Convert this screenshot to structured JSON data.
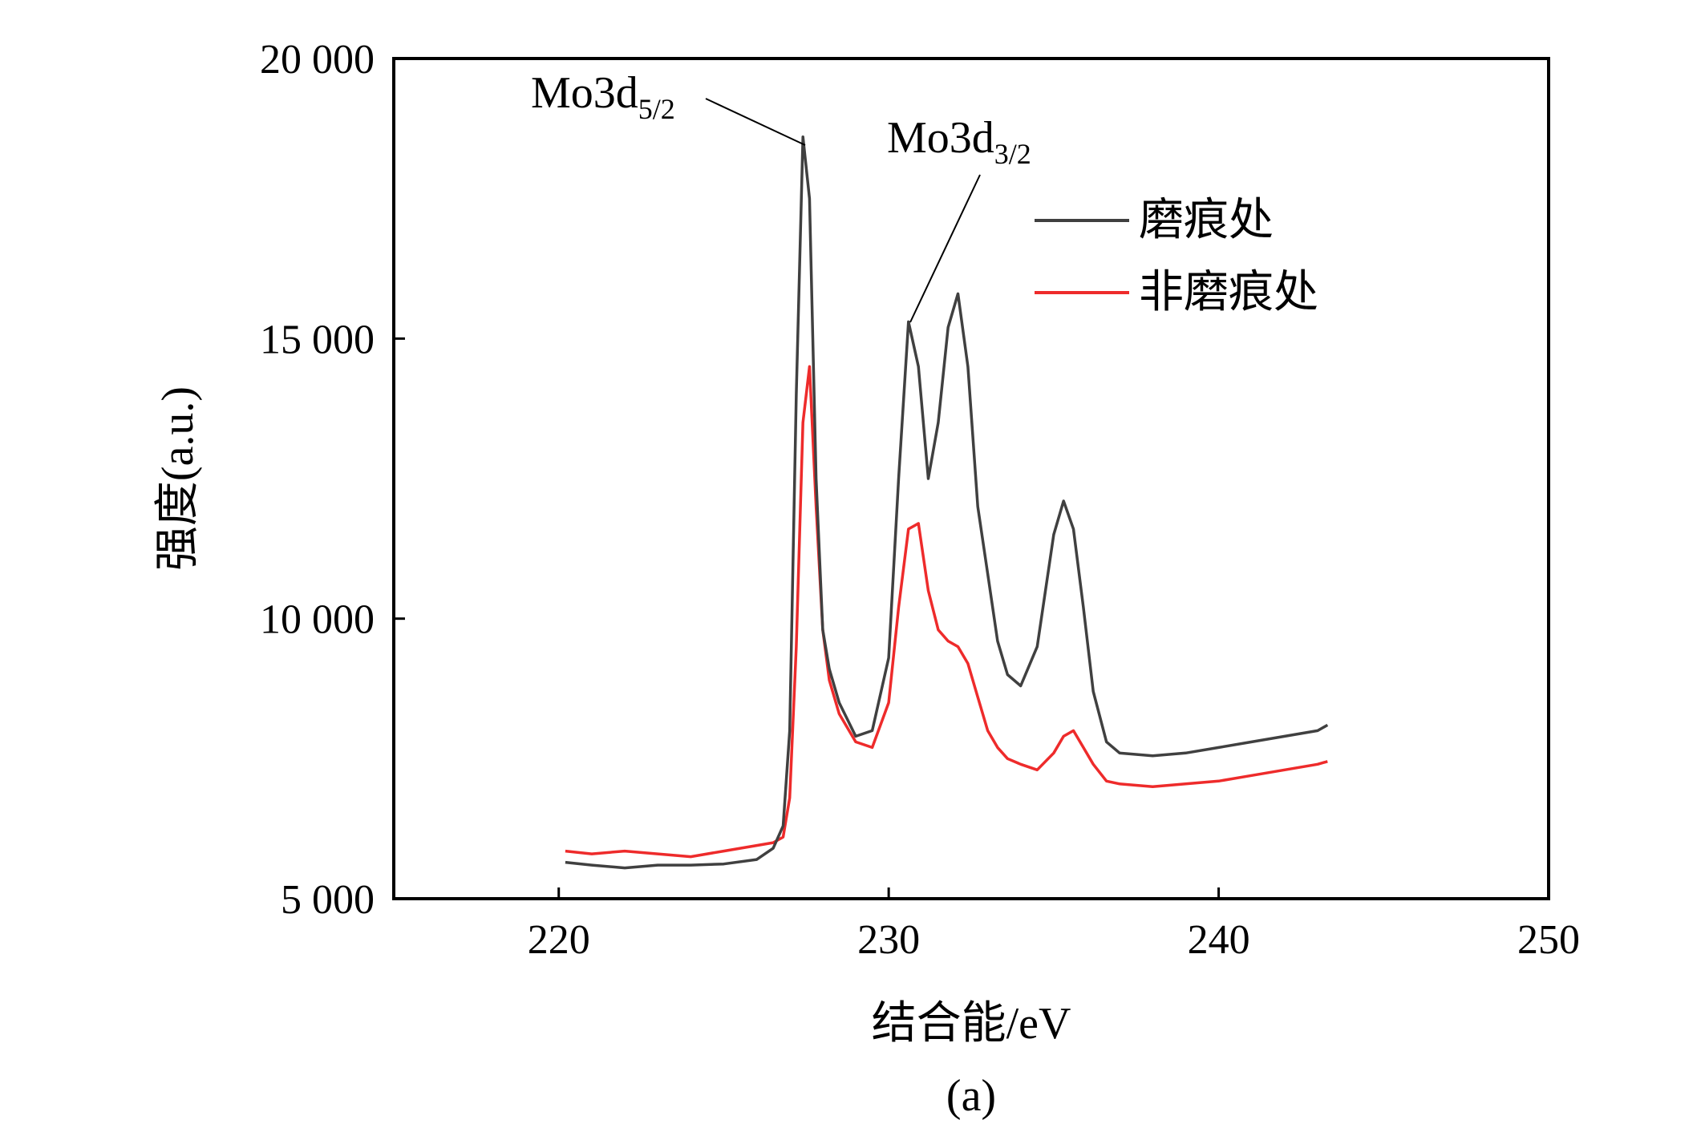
{
  "chart_data": {
    "type": "line",
    "xlabel": "结合能/eV",
    "ylabel": "强度(a.u.)",
    "caption": "(a)",
    "xlim": [
      215,
      250
    ],
    "ylim": [
      5000,
      20000
    ],
    "xticks": [
      220,
      230,
      240,
      250
    ],
    "yticks": [
      5000,
      10000,
      15000,
      20000
    ],
    "xtick_labels": [
      "220",
      "230",
      "240",
      "250"
    ],
    "ytick_labels": [
      "5 000",
      "10 000",
      "15 000",
      "20 000"
    ],
    "grid": false,
    "legend_position": "top-right",
    "annotations": [
      {
        "main": "Mo3d",
        "sub": "5/2",
        "point": [
          227.4,
          18600
        ]
      },
      {
        "main": "Mo3d",
        "sub": "3/2",
        "point": [
          230.6,
          15300
        ]
      }
    ],
    "series": [
      {
        "name": "磨痕处",
        "color": "#404040",
        "x": [
          220.2,
          221,
          222,
          223,
          224,
          225,
          226,
          226.5,
          226.8,
          227.0,
          227.2,
          227.4,
          227.6,
          227.8,
          228.0,
          228.2,
          228.5,
          229.0,
          229.5,
          230.0,
          230.3,
          230.6,
          230.9,
          231.2,
          231.5,
          231.8,
          232.1,
          232.4,
          232.7,
          233.0,
          233.3,
          233.6,
          234.0,
          234.5,
          235.0,
          235.3,
          235.6,
          235.9,
          236.2,
          236.6,
          237.0,
          238.0,
          239.0,
          240.0,
          241.0,
          242.0,
          243.0,
          243.3
        ],
        "y": [
          5650,
          5600,
          5550,
          5600,
          5600,
          5620,
          5700,
          5900,
          6300,
          8000,
          14000,
          18600,
          17500,
          12500,
          9800,
          9100,
          8500,
          7900,
          8000,
          9300,
          12500,
          15300,
          14500,
          12500,
          13500,
          15200,
          15800,
          14500,
          12000,
          10800,
          9600,
          9000,
          8800,
          9500,
          11500,
          12100,
          11600,
          10200,
          8700,
          7800,
          7600,
          7550,
          7600,
          7700,
          7800,
          7900,
          8000,
          8100
        ]
      },
      {
        "name": "非磨痕处",
        "color": "#ee2b2b",
        "x": [
          220.2,
          221,
          222,
          223,
          224,
          225,
          226,
          226.5,
          226.8,
          227.0,
          227.2,
          227.4,
          227.6,
          227.8,
          228.0,
          228.2,
          228.5,
          229.0,
          229.5,
          230.0,
          230.3,
          230.6,
          230.9,
          231.2,
          231.5,
          231.8,
          232.1,
          232.4,
          232.7,
          233.0,
          233.3,
          233.6,
          234.0,
          234.5,
          235.0,
          235.3,
          235.6,
          235.9,
          236.2,
          236.6,
          237.0,
          238.0,
          239.0,
          240.0,
          241.0,
          242.0,
          243.0,
          243.3
        ],
        "y": [
          5850,
          5800,
          5850,
          5800,
          5750,
          5850,
          5950,
          6000,
          6100,
          6800,
          9500,
          13500,
          14500,
          12000,
          9800,
          8900,
          8300,
          7800,
          7700,
          8500,
          10200,
          11600,
          11700,
          10500,
          9800,
          9600,
          9500,
          9200,
          8600,
          8000,
          7700,
          7500,
          7400,
          7300,
          7600,
          7900,
          8000,
          7700,
          7400,
          7100,
          7050,
          7000,
          7050,
          7100,
          7200,
          7300,
          7400,
          7450
        ]
      }
    ]
  }
}
